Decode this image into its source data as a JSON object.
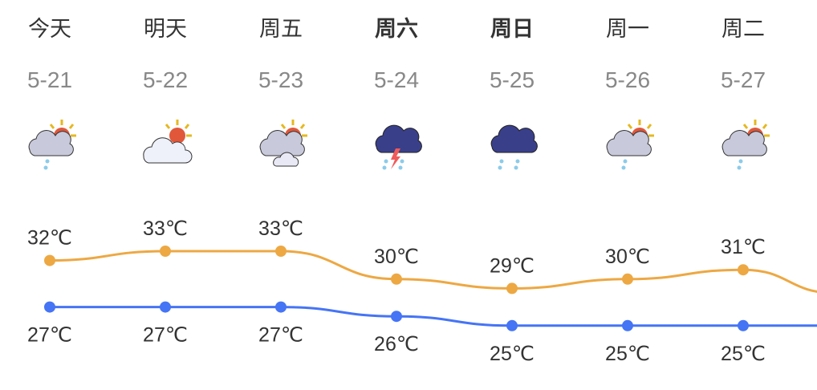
{
  "days": [
    {
      "day": "今天",
      "date": "5-21",
      "icon": "rain-cloudy-sun-icon",
      "high": "32℃",
      "low": "27℃",
      "bold": false
    },
    {
      "day": "明天",
      "date": "5-22",
      "icon": "partly-cloudy-sun-icon",
      "high": "33℃",
      "low": "27℃",
      "bold": false
    },
    {
      "day": "周五",
      "date": "5-23",
      "icon": "cloudy-sun-icon",
      "high": "33℃",
      "low": "27℃",
      "bold": false
    },
    {
      "day": "周六",
      "date": "5-24",
      "icon": "thunderstorm-icon",
      "high": "30℃",
      "low": "26℃",
      "bold": true
    },
    {
      "day": "周日",
      "date": "5-25",
      "icon": "rain-dark-cloud-icon",
      "high": "29℃",
      "low": "25℃",
      "bold": true
    },
    {
      "day": "周一",
      "date": "5-26",
      "icon": "rain-cloudy-sun-icon",
      "high": "30℃",
      "low": "25℃",
      "bold": false
    },
    {
      "day": "周二",
      "date": "5-27",
      "icon": "rain-cloudy-sun-icon",
      "high": "31℃",
      "low": "25℃",
      "bold": false
    }
  ],
  "chart_data": {
    "type": "line",
    "categories": [
      "5-21",
      "5-22",
      "5-23",
      "5-24",
      "5-25",
      "5-26",
      "5-27"
    ],
    "series": [
      {
        "key": "high",
        "values": [
          32,
          33,
          33,
          30,
          29,
          30,
          31
        ],
        "color": "#EDA843"
      },
      {
        "key": "low",
        "values": [
          27,
          27,
          27,
          26,
          25,
          25,
          25
        ],
        "color": "#4574F5"
      }
    ],
    "unit": "℃"
  }
}
